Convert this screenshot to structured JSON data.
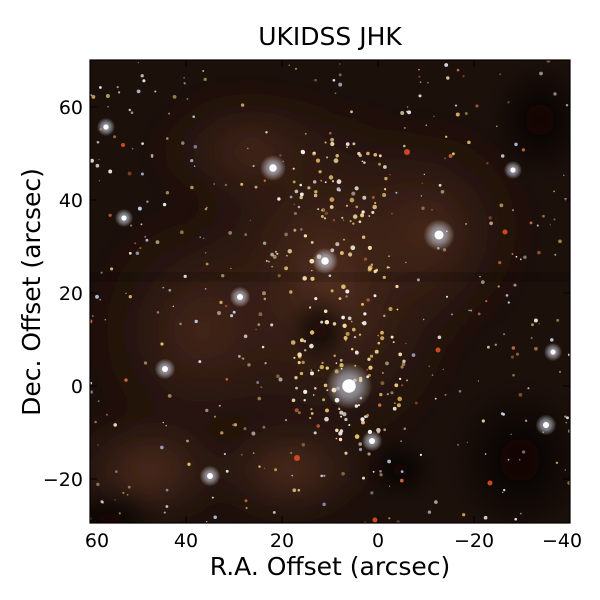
{
  "figure": {
    "title": "UKIDSS JHK",
    "xlabel": "R.A. Offset (arcsec)",
    "ylabel": "Dec. Offset (arcsec)"
  },
  "chart_data": {
    "type": "image",
    "title": "UKIDSS JHK",
    "xlabel": "R.A. Offset (arcsec)",
    "ylabel": "Dec. Offset (arcsec)",
    "xlim": [
      60,
      -40
    ],
    "ylim": [
      -30,
      70
    ],
    "x_ticks": [
      "60",
      "40",
      "20",
      "0",
      "−20",
      "−40"
    ],
    "y_ticks": [
      "60",
      "40",
      "20",
      "0",
      "−20"
    ],
    "grid": false,
    "colors": {
      "background": "#1a0e0a",
      "nebula": "#4a2a1c",
      "star_white": "#f2f2ff",
      "star_yellow": "#e8c060",
      "star_red": "#d04020"
    }
  }
}
